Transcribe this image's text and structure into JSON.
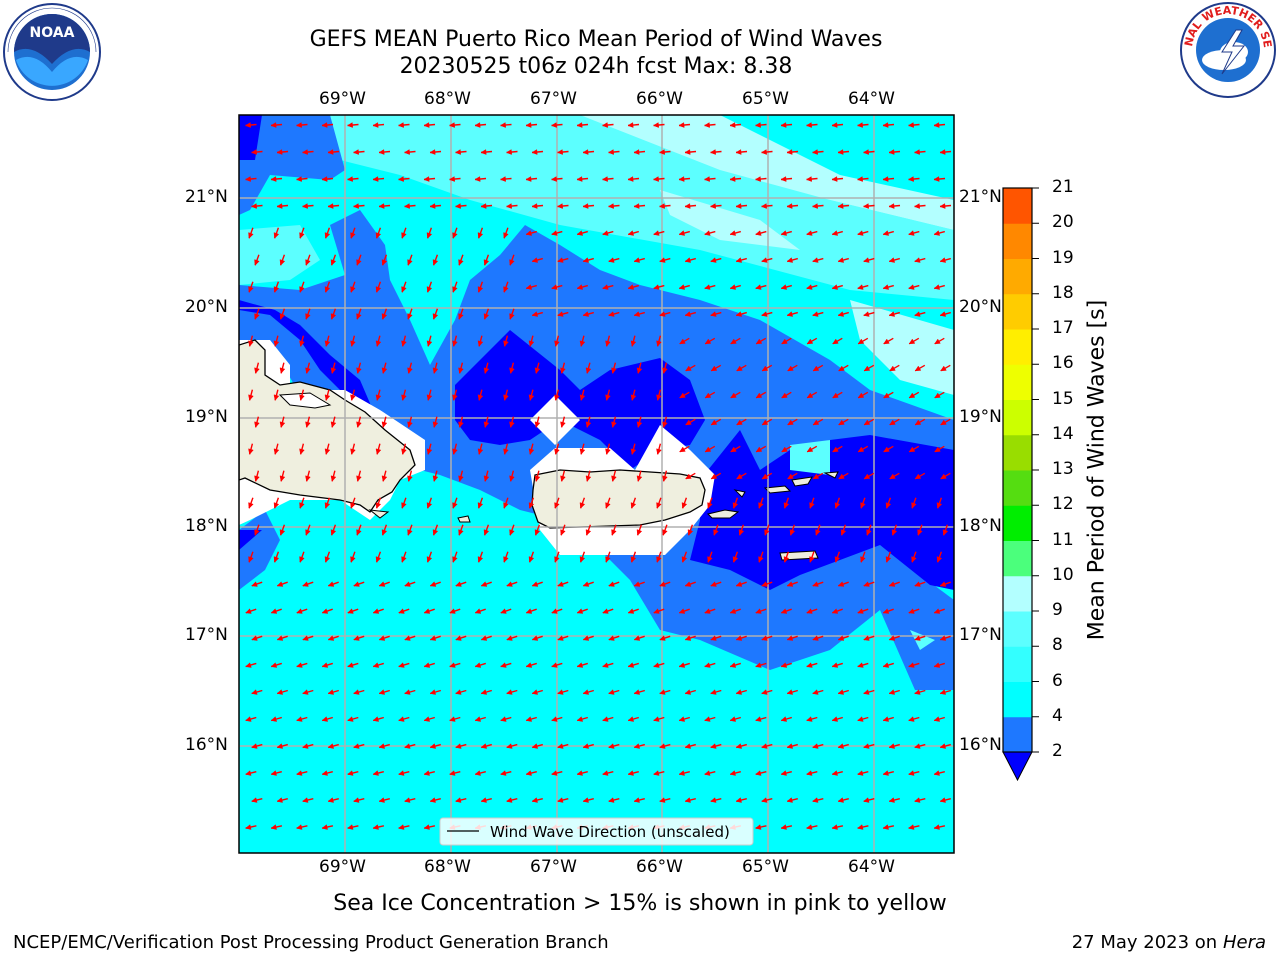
{
  "header": {
    "title_line1": "GEFS MEAN Puerto Rico Mean Period of Wind Waves",
    "title_line2": "20230525 t06z 024h fcst   Max: 8.38"
  },
  "logos": {
    "left": "noara-logo",
    "right": "nws-logo",
    "right_ring_text": "NATIONAL WEATHER SERVICE"
  },
  "map": {
    "lon_labels": [
      "69°W",
      "68°W",
      "67°W",
      "66°W",
      "65°W",
      "64°W"
    ],
    "lat_labels": [
      "21°N",
      "20°N",
      "19°N",
      "18°N",
      "17°N",
      "16°N"
    ],
    "legend_label": "Wind Wave Direction (unscaled)",
    "colors": {
      "lt_cyan": "#b3ffff",
      "cyan2": "#5cffff",
      "cyan": "#00ffff",
      "blue_mid": "#1e78ff",
      "blue_dark": "#0000ff",
      "land": "#efefdf",
      "arrow": "#ff0000"
    }
  },
  "colorbar": {
    "title": "Mean Period of Wind Waves [s]",
    "ticks": [
      "2",
      "4",
      "6",
      "8",
      "9",
      "10",
      "11",
      "12",
      "13",
      "14",
      "15",
      "16",
      "17",
      "18",
      "19",
      "20",
      "21"
    ],
    "colors": [
      "#1e78ff",
      "#00ffff",
      "#33ffff",
      "#5cffff",
      "#b3ffff",
      "#4bff7c",
      "#00ee00",
      "#55dd11",
      "#99dd00",
      "#ccff00",
      "#eeff00",
      "#ffee00",
      "#ffcc00",
      "#ffaa00",
      "#ff8800",
      "#ff5500",
      "#ff2200",
      "#ff0000"
    ],
    "under_color": "#0000ff"
  },
  "caption": "Sea Ice Concentration > 15% is shown in pink to yellow",
  "footer": {
    "left": "NCEP/EMC/Verification Post Processing Product Generation Branch",
    "right_prefix": "27 May 2023 on",
    "right_host": "Hera"
  }
}
